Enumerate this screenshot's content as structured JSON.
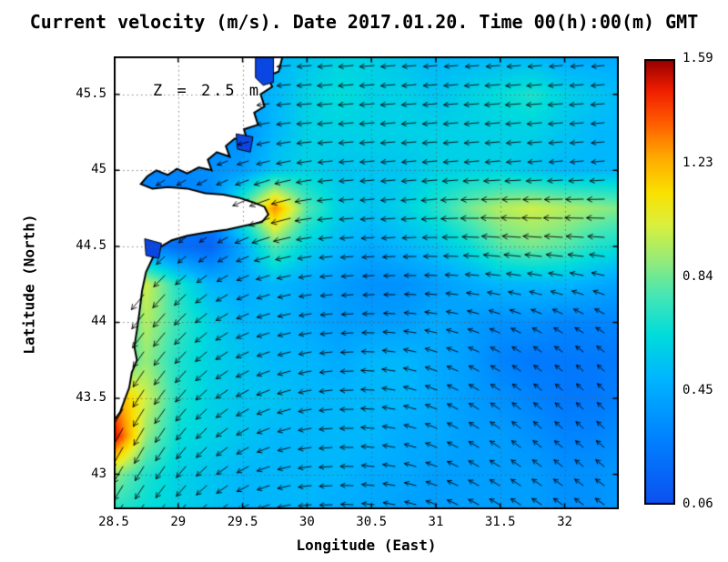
{
  "title": "Current velocity (m/s). Date 2017.01.20. Time 00(h):00(m) GMT",
  "annotation": "Z = 2.5 m",
  "axes": {
    "x": {
      "label": "Longitude (East)",
      "ticks": [
        "28.5",
        "29",
        "29.5",
        "30",
        "30.5",
        "31",
        "31.5",
        "32"
      ],
      "range": [
        28.5,
        32.42
      ]
    },
    "y": {
      "label": "Latitude (North)",
      "ticks": [
        "43",
        "43.5",
        "44",
        "44.5",
        "45",
        "45.5"
      ],
      "range": [
        42.77,
        45.75
      ]
    }
  },
  "colorbar": {
    "min": 0.06,
    "max": 1.59,
    "tick_labels": [
      "1.59",
      "1.23",
      "0.84",
      "0.45",
      "0.06"
    ]
  },
  "style": {
    "land_color": "#ffffff",
    "coast_color": "#000000",
    "lake_color": "#0a46e1",
    "arrow_color": "#000000",
    "grid_color": "rgba(90,90,90,0.75)",
    "frame_color": "#000000",
    "colormap_stops": [
      {
        "t": 0.0,
        "color": "#0c50f0"
      },
      {
        "t": 0.15,
        "color": "#0082ff"
      },
      {
        "t": 0.28,
        "color": "#00b4ff"
      },
      {
        "t": 0.38,
        "color": "#00dcdc"
      },
      {
        "t": 0.47,
        "color": "#46e6b4"
      },
      {
        "t": 0.55,
        "color": "#96eb78"
      },
      {
        "t": 0.63,
        "color": "#dcf03c"
      },
      {
        "t": 0.7,
        "color": "#fae100"
      },
      {
        "t": 0.78,
        "color": "#ffaa00"
      },
      {
        "t": 0.86,
        "color": "#ff5a00"
      },
      {
        "t": 0.93,
        "color": "#f01e00"
      },
      {
        "t": 1.0,
        "color": "#960000"
      }
    ]
  },
  "chart_data": {
    "type": "heatmap",
    "quiver": true,
    "units": "m/s",
    "depth_m": 2.5,
    "date": "2017.01.20",
    "time_gmt": "00:00",
    "lon": [
      28.5,
      28.75,
      29.0,
      29.25,
      29.5,
      29.75,
      30.0,
      30.25,
      30.5,
      30.75,
      31.0,
      31.25,
      31.5,
      31.75,
      32.0,
      32.25,
      32.5
    ],
    "lat": [
      45.75,
      45.5,
      45.25,
      45.0,
      44.75,
      44.5,
      44.25,
      44.0,
      43.75,
      43.5,
      43.25,
      43.0,
      42.75
    ],
    "speed": [
      [
        0.35,
        0.35,
        0.35,
        0.35,
        0.4,
        0.5,
        0.55,
        0.6,
        0.6,
        0.55,
        0.5,
        0.5,
        0.5,
        0.5,
        0.45,
        0.45,
        0.45
      ],
      [
        0.35,
        0.35,
        0.3,
        0.35,
        0.4,
        0.5,
        0.6,
        0.65,
        0.6,
        0.6,
        0.55,
        0.6,
        0.65,
        0.7,
        0.6,
        0.55,
        0.5
      ],
      [
        0.3,
        0.3,
        0.25,
        0.3,
        0.35,
        0.5,
        0.6,
        0.6,
        0.6,
        0.6,
        0.6,
        0.6,
        0.6,
        0.6,
        0.55,
        0.5,
        0.5
      ],
      [
        0.3,
        0.3,
        0.3,
        0.35,
        0.4,
        0.55,
        0.6,
        0.55,
        0.55,
        0.55,
        0.6,
        0.6,
        0.6,
        0.55,
        0.5,
        0.5,
        0.5
      ],
      [
        0.3,
        0.3,
        0.3,
        0.3,
        0.8,
        1.3,
        0.8,
        0.6,
        0.55,
        0.6,
        0.7,
        0.85,
        0.95,
        1.0,
        0.95,
        0.9,
        0.85
      ],
      [
        0.3,
        0.3,
        0.2,
        0.15,
        0.45,
        0.8,
        0.6,
        0.5,
        0.45,
        0.5,
        0.55,
        0.65,
        0.8,
        0.85,
        0.8,
        0.7,
        0.65
      ],
      [
        0.5,
        1.0,
        0.7,
        0.5,
        0.45,
        0.5,
        0.45,
        0.4,
        0.35,
        0.35,
        0.4,
        0.45,
        0.5,
        0.5,
        0.5,
        0.45,
        0.4
      ],
      [
        0.6,
        0.95,
        0.75,
        0.6,
        0.5,
        0.5,
        0.45,
        0.4,
        0.4,
        0.4,
        0.45,
        0.4,
        0.35,
        0.35,
        0.3,
        0.3,
        0.3
      ],
      [
        0.7,
        0.9,
        0.7,
        0.6,
        0.55,
        0.5,
        0.5,
        0.45,
        0.5,
        0.5,
        0.45,
        0.4,
        0.3,
        0.25,
        0.25,
        0.25,
        0.25
      ],
      [
        1.3,
        1.0,
        0.7,
        0.6,
        0.55,
        0.55,
        0.5,
        0.5,
        0.5,
        0.5,
        0.45,
        0.4,
        0.35,
        0.3,
        0.25,
        0.25,
        0.3
      ],
      [
        1.55,
        0.9,
        0.65,
        0.6,
        0.55,
        0.5,
        0.5,
        0.5,
        0.5,
        0.45,
        0.45,
        0.4,
        0.4,
        0.35,
        0.3,
        0.3,
        0.35
      ],
      [
        0.9,
        0.7,
        0.6,
        0.55,
        0.5,
        0.5,
        0.5,
        0.5,
        0.45,
        0.45,
        0.4,
        0.4,
        0.4,
        0.4,
        0.35,
        0.35,
        0.4
      ],
      [
        0.7,
        0.65,
        0.6,
        0.55,
        0.5,
        0.5,
        0.5,
        0.45,
        0.45,
        0.4,
        0.4,
        0.4,
        0.4,
        0.4,
        0.35,
        0.35,
        0.4
      ]
    ],
    "direction_deg": [
      [
        200,
        200,
        200,
        195,
        190,
        185,
        185,
        185,
        185,
        185,
        185,
        185,
        185,
        185,
        185,
        185,
        185
      ],
      [
        200,
        200,
        200,
        195,
        190,
        185,
        185,
        185,
        185,
        185,
        185,
        185,
        185,
        185,
        185,
        185,
        185
      ],
      [
        210,
        210,
        205,
        200,
        195,
        190,
        185,
        185,
        185,
        185,
        185,
        185,
        185,
        185,
        185,
        185,
        185
      ],
      [
        215,
        215,
        210,
        205,
        200,
        195,
        190,
        185,
        185,
        185,
        185,
        185,
        185,
        185,
        185,
        185,
        185
      ],
      [
        220,
        220,
        215,
        210,
        205,
        200,
        190,
        185,
        185,
        185,
        185,
        182,
        180,
        180,
        180,
        180,
        180
      ],
      [
        225,
        225,
        220,
        215,
        205,
        195,
        190,
        185,
        185,
        183,
        180,
        178,
        175,
        175,
        175,
        175,
        175
      ],
      [
        230,
        230,
        225,
        215,
        205,
        195,
        190,
        185,
        183,
        180,
        178,
        175,
        172,
        170,
        168,
        165,
        165
      ],
      [
        235,
        232,
        228,
        218,
        205,
        195,
        190,
        185,
        180,
        175,
        170,
        165,
        160,
        155,
        152,
        150,
        150
      ],
      [
        238,
        235,
        230,
        220,
        208,
        198,
        192,
        185,
        178,
        170,
        162,
        155,
        150,
        145,
        142,
        140,
        140
      ],
      [
        240,
        238,
        232,
        222,
        210,
        200,
        192,
        185,
        178,
        168,
        158,
        150,
        145,
        140,
        138,
        135,
        135
      ],
      [
        242,
        240,
        234,
        224,
        212,
        200,
        190,
        183,
        176,
        168,
        158,
        150,
        145,
        140,
        138,
        138,
        138
      ],
      [
        240,
        238,
        232,
        222,
        210,
        198,
        188,
        182,
        175,
        168,
        160,
        152,
        148,
        145,
        142,
        142,
        142
      ],
      [
        238,
        235,
        230,
        220,
        208,
        196,
        186,
        180,
        174,
        168,
        160,
        154,
        150,
        148,
        145,
        145,
        145
      ]
    ],
    "coastline": [
      [
        29.81,
        45.75
      ],
      [
        29.78,
        45.65
      ],
      [
        29.69,
        45.62
      ],
      [
        29.73,
        45.55
      ],
      [
        29.64,
        45.5
      ],
      [
        29.67,
        45.42
      ],
      [
        29.59,
        45.38
      ],
      [
        29.62,
        45.3
      ],
      [
        29.51,
        45.27
      ],
      [
        29.54,
        45.19
      ],
      [
        29.44,
        45.21
      ],
      [
        29.37,
        45.16
      ],
      [
        29.4,
        45.09
      ],
      [
        29.3,
        45.12
      ],
      [
        29.23,
        45.07
      ],
      [
        29.26,
        45.0
      ],
      [
        29.16,
        45.02
      ],
      [
        29.07,
        44.98
      ],
      [
        28.99,
        45.01
      ],
      [
        28.92,
        44.97
      ],
      [
        28.83,
        45.0
      ],
      [
        28.76,
        44.96
      ],
      [
        28.71,
        44.91
      ],
      [
        28.8,
        44.88
      ],
      [
        28.92,
        44.89
      ],
      [
        29.07,
        44.88
      ],
      [
        29.21,
        44.85
      ],
      [
        29.35,
        44.84
      ],
      [
        29.47,
        44.82
      ],
      [
        29.58,
        44.79
      ],
      [
        29.67,
        44.76
      ],
      [
        29.7,
        44.71
      ],
      [
        29.65,
        44.66
      ],
      [
        29.54,
        44.64
      ],
      [
        29.38,
        44.61
      ],
      [
        29.21,
        44.59
      ],
      [
        29.07,
        44.57
      ],
      [
        28.95,
        44.54
      ],
      [
        28.85,
        44.49
      ],
      [
        28.8,
        44.42
      ],
      [
        28.75,
        44.33
      ],
      [
        28.72,
        44.21
      ],
      [
        28.7,
        44.07
      ],
      [
        28.68,
        43.95
      ],
      [
        28.66,
        43.84
      ],
      [
        28.68,
        43.75
      ],
      [
        28.64,
        43.67
      ],
      [
        28.62,
        43.57
      ],
      [
        28.58,
        43.48
      ],
      [
        28.55,
        43.41
      ],
      [
        28.5,
        43.35
      ],
      [
        28.5,
        45.75
      ]
    ],
    "lakes": [
      [
        [
          29.6,
          45.75
        ],
        [
          29.74,
          45.75
        ],
        [
          29.74,
          45.58
        ],
        [
          29.66,
          45.56
        ],
        [
          29.6,
          45.61
        ]
      ],
      [
        [
          29.45,
          45.24
        ],
        [
          29.58,
          45.22
        ],
        [
          29.56,
          45.12
        ],
        [
          29.46,
          45.14
        ]
      ],
      [
        [
          28.74,
          44.55
        ],
        [
          28.87,
          44.52
        ],
        [
          28.85,
          44.42
        ],
        [
          28.75,
          44.44
        ]
      ]
    ]
  }
}
